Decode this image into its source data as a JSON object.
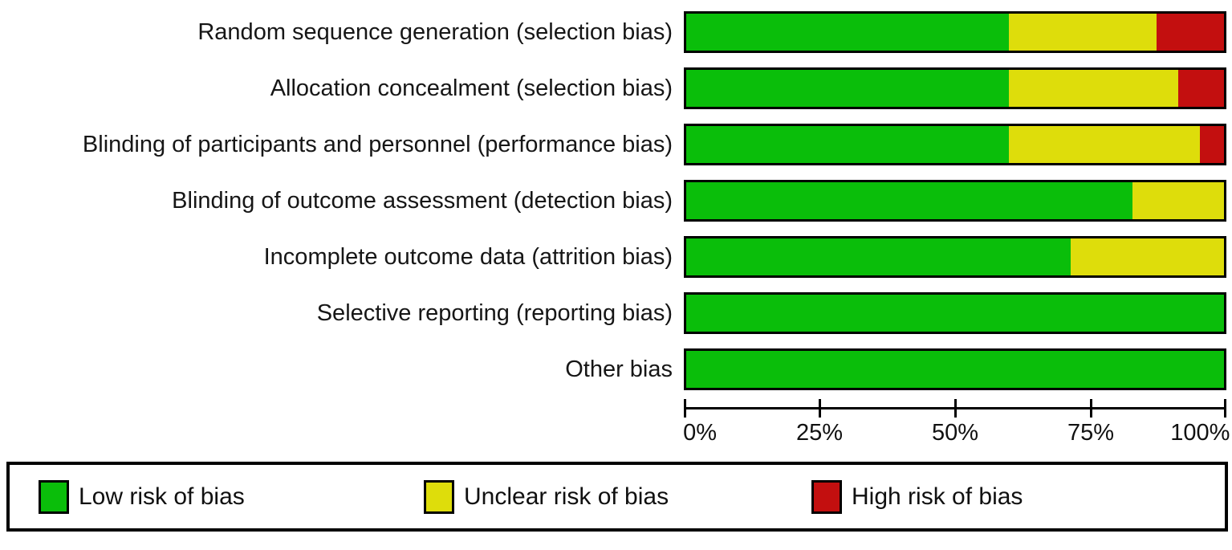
{
  "chart_data": {
    "type": "bar",
    "variant": "horizontal-stacked-100-percent",
    "title": "",
    "categories": [
      "Random sequence generation (selection bias)",
      "Allocation concealment (selection bias)",
      "Blinding of participants and personnel (performance bias)",
      "Blinding of outcome assessment (detection bias)",
      "Incomplete outcome data (attrition bias)",
      "Selective reporting (reporting bias)",
      "Other bias"
    ],
    "series": [
      {
        "name": "Low risk of bias",
        "color": "#0abe0a",
        "values": [
          60,
          60,
          60,
          83,
          71.5,
          100,
          100
        ]
      },
      {
        "name": "Unclear risk of bias",
        "color": "#dedd0b",
        "values": [
          27.5,
          31.5,
          35.5,
          17,
          28.5,
          0,
          0
        ]
      },
      {
        "name": "High risk of bias",
        "color": "#c30f0f",
        "values": [
          12.5,
          8.5,
          4.5,
          0,
          0,
          0,
          0
        ]
      }
    ],
    "x_ticks": [
      "0%",
      "25%",
      "50%",
      "75%",
      "100%"
    ],
    "xlim": [
      0,
      100
    ],
    "grid": false,
    "legend_position": "bottom",
    "bar_border_color": "#000000",
    "background_color": "#ffffff"
  }
}
